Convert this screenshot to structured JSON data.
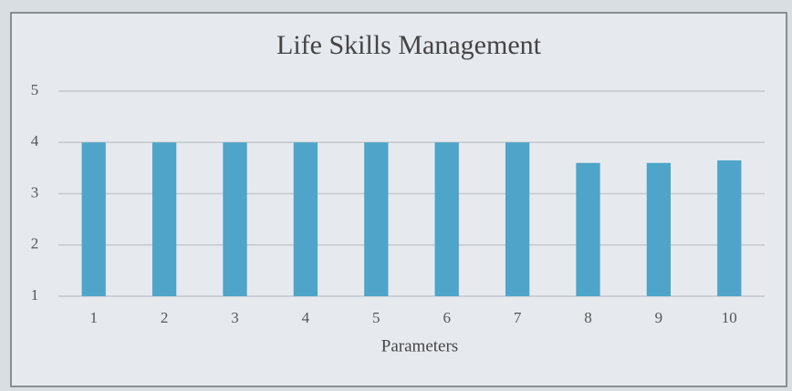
{
  "chart_data": {
    "type": "bar",
    "title": "Life Skills Management",
    "x_label": "Parameters",
    "categories": [
      "1",
      "2",
      "3",
      "4",
      "5",
      "6",
      "7",
      "8",
      "9",
      "10"
    ],
    "values": [
      4,
      4,
      4,
      4,
      4,
      4,
      4,
      3.6,
      3.6,
      3.65
    ],
    "color": "#4ea5c9",
    "ylim": [
      1,
      5
    ],
    "yticks": [
      1,
      2,
      3,
      4,
      5
    ],
    "grid": true
  }
}
